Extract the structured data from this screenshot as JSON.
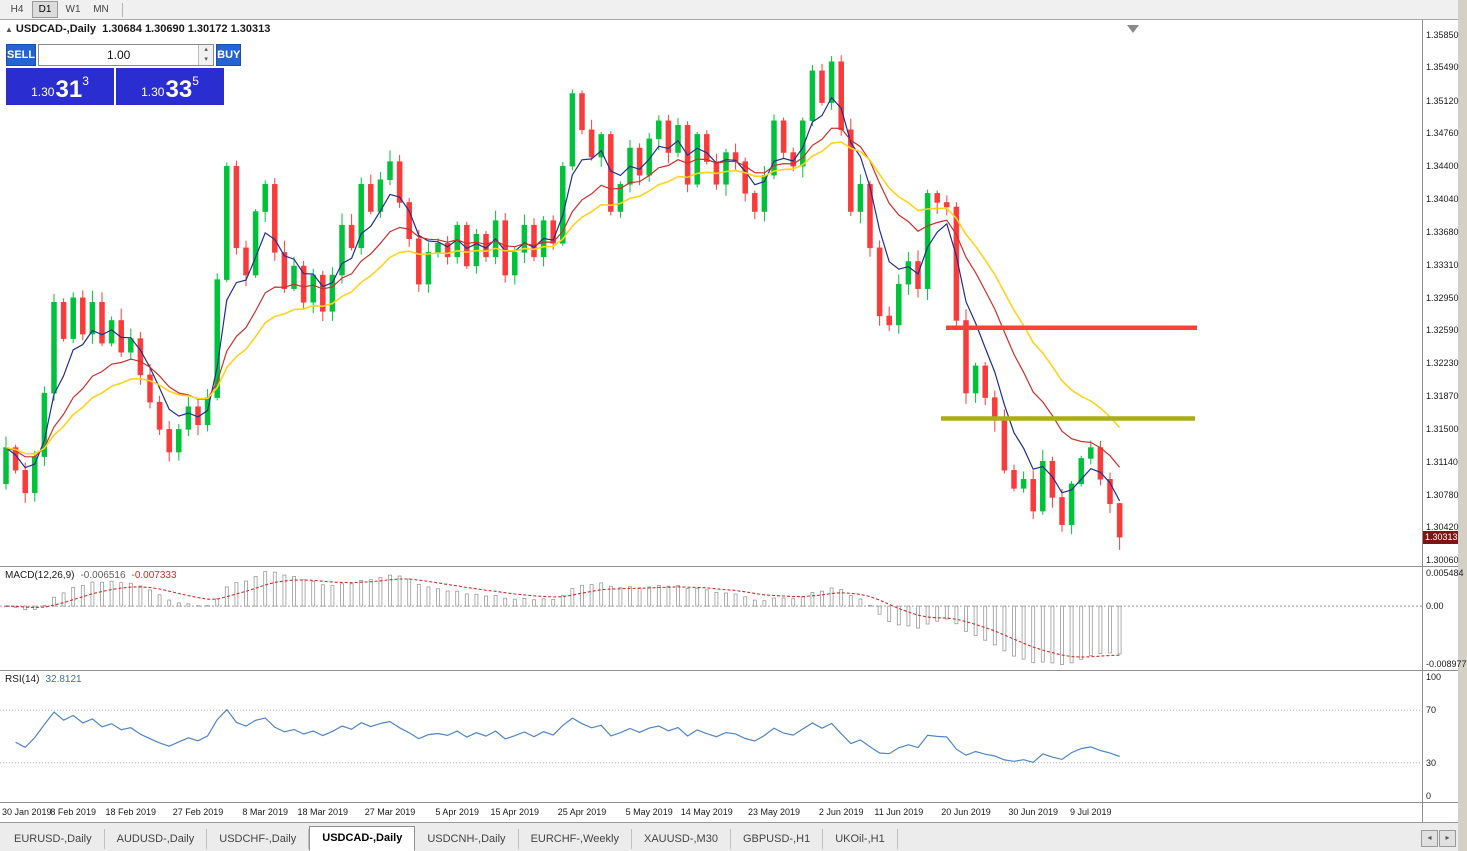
{
  "toolbar": {
    "timeframes": [
      {
        "label": "H4",
        "active": false
      },
      {
        "label": "D1",
        "active": true
      },
      {
        "label": "W1",
        "active": false
      },
      {
        "label": "MN",
        "active": false
      }
    ]
  },
  "chart": {
    "pair": "USDCAD-,Daily",
    "ohlc": "1.30684 1.30690 1.30172 1.30313"
  },
  "trade_panel": {
    "sell_label": "SELL",
    "buy_label": "BUY",
    "volume": "1.00",
    "sell_price": {
      "prefix": "1.30",
      "big": "31",
      "sup": "3"
    },
    "buy_price": {
      "prefix": "1.30",
      "big": "33",
      "sup": "5"
    }
  },
  "price_scale": [
    "1.35850",
    "1.35490",
    "1.35120",
    "1.34760",
    "1.34400",
    "1.34040",
    "1.33680",
    "1.33310",
    "1.32950",
    "1.32590",
    "1.32230",
    "1.31870",
    "1.31500",
    "1.31140",
    "1.30780",
    "1.30420",
    "1.30060"
  ],
  "price_badge": "1.30313",
  "macd": {
    "label": "MACD(12,26,9)",
    "value_main": "-0.006516",
    "value_signal": "-0.007333",
    "scale": [
      "0.005484",
      "0.00",
      "-0.008977"
    ]
  },
  "rsi": {
    "label": "RSI(14)",
    "value": "32.8121",
    "scale": [
      "100",
      "70",
      "30",
      "0"
    ]
  },
  "time_axis": [
    {
      "i": 0,
      "t": "30 Jan 2019"
    },
    {
      "i": 7,
      "t": "8 Feb 2019"
    },
    {
      "i": 13,
      "t": "18 Feb 2019"
    },
    {
      "i": 20,
      "t": "27 Feb 2019"
    },
    {
      "i": 27,
      "t": "8 Mar 2019"
    },
    {
      "i": 33,
      "t": "18 Mar 2019"
    },
    {
      "i": 40,
      "t": "27 Mar 2019"
    },
    {
      "i": 47,
      "t": "5 Apr 2019"
    },
    {
      "i": 53,
      "t": "15 Apr 2019"
    },
    {
      "i": 60,
      "t": "25 Apr 2019"
    },
    {
      "i": 67,
      "t": "5 May 2019"
    },
    {
      "i": 73,
      "t": "14 May 2019"
    },
    {
      "i": 80,
      "t": "23 May 2019"
    },
    {
      "i": 87,
      "t": "2 Jun 2019"
    },
    {
      "i": 93,
      "t": "11 Jun 2019"
    },
    {
      "i": 100,
      "t": "20 Jun 2019"
    },
    {
      "i": 107,
      "t": "30 Jun 2019"
    },
    {
      "i": 113,
      "t": "9 Jul 2019"
    }
  ],
  "tabs": [
    {
      "label": "EURUSD-,Daily",
      "active": false
    },
    {
      "label": "AUDUSD-,Daily",
      "active": false
    },
    {
      "label": "USDCHF-,Daily",
      "active": false
    },
    {
      "label": "USDCAD-,Daily",
      "active": true
    },
    {
      "label": "USDCNH-,Daily",
      "active": false
    },
    {
      "label": "EURCHF-,Weekly",
      "active": false
    },
    {
      "label": "XAUUSD-,M30",
      "active": false
    },
    {
      "label": "GBPUSD-,H1",
      "active": false
    },
    {
      "label": "UKOil-,H1",
      "active": false
    }
  ],
  "colors": {
    "up": "#00c23a",
    "down": "#fb3b3b",
    "ma_fast": "#1f2f8f",
    "ma_mid": "#c9302c",
    "ma_slow": "#ffd31c",
    "macd_signal": "#c9302c",
    "rsi_line": "#4f86c6",
    "ray_red": "#f64336",
    "ray_olive": "#aaae16",
    "badge_bg": "#7d1515"
  },
  "chart_data": {
    "type": "candlestick",
    "symbol": "USDCAD",
    "period": "Daily",
    "y_range": [
      1.29995,
      1.3601
    ],
    "first_open": 1.309,
    "closes": [
      1.313,
      1.3105,
      1.308,
      1.312,
      1.319,
      1.329,
      1.325,
      1.3295,
      1.3255,
      1.329,
      1.3245,
      1.327,
      1.3235,
      1.325,
      1.321,
      1.318,
      1.315,
      1.3125,
      1.315,
      1.3175,
      1.3155,
      1.3185,
      1.3315,
      1.344,
      1.335,
      1.332,
      1.339,
      1.342,
      1.3345,
      1.3305,
      1.333,
      1.329,
      1.332,
      1.328,
      1.332,
      1.3375,
      1.335,
      1.342,
      1.339,
      1.3425,
      1.3445,
      1.34,
      1.336,
      1.331,
      1.3345,
      1.3355,
      1.334,
      1.3375,
      1.333,
      1.3365,
      1.334,
      1.338,
      1.332,
      1.3345,
      1.3375,
      1.334,
      1.338,
      1.3355,
      1.344,
      1.352,
      1.348,
      1.345,
      1.3475,
      1.339,
      1.342,
      1.346,
      1.343,
      1.347,
      1.349,
      1.3455,
      1.3485,
      1.342,
      1.3475,
      1.3445,
      1.342,
      1.3455,
      1.3445,
      1.341,
      1.339,
      1.343,
      1.349,
      1.3455,
      1.344,
      1.349,
      1.3545,
      1.351,
      1.3555,
      1.348,
      1.339,
      1.342,
      1.335,
      1.3275,
      1.3265,
      1.331,
      1.3335,
      1.3305,
      1.341,
      1.34,
      1.3395,
      1.327,
      1.319,
      1.322,
      1.3185,
      1.316,
      1.3105,
      1.3085,
      1.3095,
      1.306,
      1.3115,
      1.3075,
      1.3045,
      1.309,
      1.3118,
      1.313,
      1.3095,
      1.3068,
      1.30313
    ],
    "last_candle": {
      "o": 1.30684,
      "h": 1.3069,
      "l": 1.30172,
      "c": 1.30313
    },
    "moving_averages": [
      {
        "period": 5,
        "type": "ema",
        "color_key": "ma_fast"
      },
      {
        "period": 13,
        "type": "ema",
        "color_key": "ma_mid"
      },
      {
        "period": 21,
        "type": "ema",
        "color_key": "ma_slow"
      }
    ],
    "horizontal_rays": [
      {
        "name": "resistance",
        "price": 1.3262,
        "x1": 946,
        "x2": 1197,
        "color_key": "ray_red"
      },
      {
        "name": "support",
        "price": 1.3162,
        "x1": 941,
        "x2": 1195,
        "color_key": "ray_olive"
      }
    ],
    "macd_params": [
      12,
      26,
      9
    ],
    "macd_y_range": [
      -0.0098,
      0.006
    ],
    "rsi_period": 14,
    "rsi_levels": [
      70,
      30
    ],
    "current_price": 1.30313
  }
}
